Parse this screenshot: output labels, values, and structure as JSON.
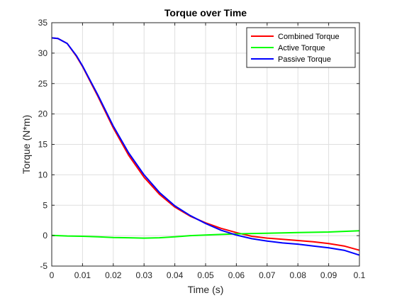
{
  "chart_data": {
    "type": "line",
    "title": "Torque over Time",
    "xlabel": "Time (s)",
    "ylabel": "Torque (N*m)",
    "xlim": [
      0,
      0.1
    ],
    "ylim": [
      -5,
      35
    ],
    "x_ticks": [
      0,
      0.01,
      0.02,
      0.03,
      0.04,
      0.05,
      0.06,
      0.07,
      0.08,
      0.09,
      0.1
    ],
    "x_tick_labels": [
      "0",
      "0.01",
      "0.02",
      "0.03",
      "0.04",
      "0.05",
      "0.06",
      "0.07",
      "0.08",
      "0.09",
      "0.1"
    ],
    "y_ticks": [
      -5,
      0,
      5,
      10,
      15,
      20,
      25,
      30,
      35
    ],
    "y_tick_labels": [
      "-5",
      "0",
      "5",
      "10",
      "15",
      "20",
      "25",
      "30",
      "35"
    ],
    "grid": true,
    "legend_position": "top-right",
    "series": [
      {
        "name": "Combined Torque",
        "color": "#ff0000",
        "x": [
          0,
          0.002,
          0.005,
          0.008,
          0.01,
          0.015,
          0.02,
          0.025,
          0.03,
          0.035,
          0.04,
          0.045,
          0.05,
          0.055,
          0.06,
          0.065,
          0.07,
          0.075,
          0.08,
          0.085,
          0.09,
          0.095,
          0.1
        ],
        "y": [
          32.5,
          32.4,
          31.6,
          29.5,
          27.8,
          22.9,
          17.7,
          13.2,
          9.6,
          6.8,
          4.7,
          3.2,
          2.1,
          1.2,
          0.5,
          -0.1,
          -0.4,
          -0.6,
          -0.8,
          -1.0,
          -1.3,
          -1.7,
          -2.4
        ]
      },
      {
        "name": "Active Torque",
        "color": "#00ff00",
        "x": [
          0,
          0.005,
          0.01,
          0.015,
          0.02,
          0.025,
          0.03,
          0.035,
          0.04,
          0.045,
          0.05,
          0.055,
          0.06,
          0.065,
          0.07,
          0.075,
          0.08,
          0.085,
          0.09,
          0.095,
          0.1
        ],
        "y": [
          0.05,
          -0.05,
          -0.1,
          -0.2,
          -0.3,
          -0.35,
          -0.4,
          -0.35,
          -0.2,
          0.0,
          0.1,
          0.2,
          0.3,
          0.35,
          0.4,
          0.45,
          0.5,
          0.55,
          0.6,
          0.7,
          0.8
        ]
      },
      {
        "name": "Passive Torque",
        "color": "#0000ff",
        "x": [
          0,
          0.002,
          0.005,
          0.008,
          0.01,
          0.015,
          0.02,
          0.025,
          0.03,
          0.035,
          0.04,
          0.045,
          0.05,
          0.055,
          0.06,
          0.065,
          0.07,
          0.075,
          0.08,
          0.085,
          0.09,
          0.095,
          0.1
        ],
        "y": [
          32.5,
          32.4,
          31.6,
          29.6,
          27.9,
          23.1,
          18.0,
          13.6,
          10.0,
          7.1,
          4.9,
          3.3,
          2.0,
          0.9,
          0.1,
          -0.5,
          -0.9,
          -1.2,
          -1.4,
          -1.7,
          -2.0,
          -2.4,
          -3.2
        ]
      }
    ]
  }
}
